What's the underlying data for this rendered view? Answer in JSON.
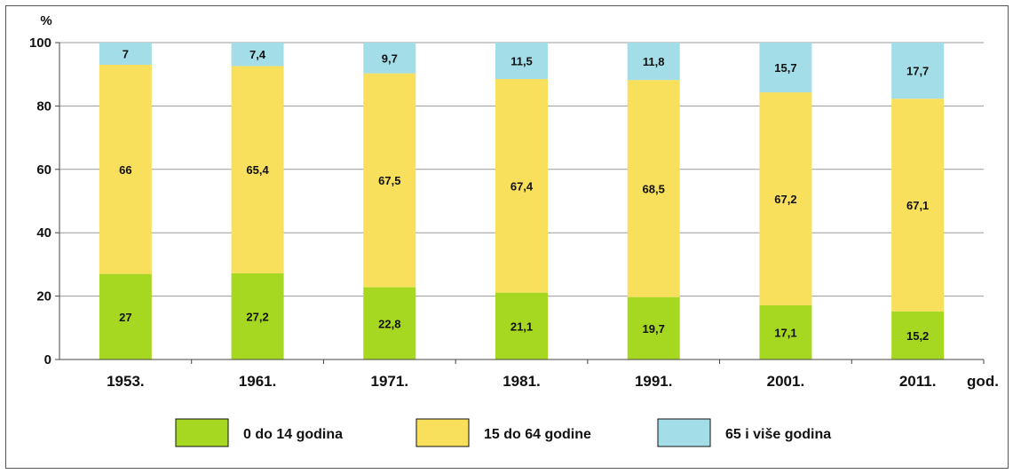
{
  "chart_data": {
    "type": "bar",
    "stacked": true,
    "categories": [
      "1953.",
      "1961.",
      "1971.",
      "1981.",
      "1991.",
      "2001.",
      "2011."
    ],
    "series": [
      {
        "name": "0 do 14 godina",
        "color": "#a6d822",
        "values": [
          27,
          27.2,
          22.8,
          21.1,
          19.7,
          17.1,
          15.2
        ],
        "labels": [
          "27",
          "27,2",
          "22,8",
          "21,1",
          "19,7",
          "17,1",
          "15,2"
        ]
      },
      {
        "name": "15 do 64 godine",
        "color": "#f8df5c",
        "values": [
          66,
          65.4,
          67.5,
          67.4,
          68.5,
          67.2,
          67.1
        ],
        "labels": [
          "66",
          "65,4",
          "67,5",
          "67,4",
          "68,5",
          "67,2",
          "67,1"
        ]
      },
      {
        "name": "65 i više godina",
        "color": "#a3dde8",
        "values": [
          7,
          7.4,
          9.7,
          11.5,
          11.8,
          15.7,
          17.7
        ],
        "labels": [
          "7",
          "7,4",
          "9,7",
          "11,5",
          "11,8",
          "15,7",
          "17,7"
        ]
      }
    ],
    "ylabel": "%",
    "xlabel": "god.",
    "ylim": [
      0,
      100
    ],
    "yticks": [
      "0",
      "20",
      "40",
      "60",
      "80",
      "100"
    ],
    "grid": true,
    "legend": "bottom"
  }
}
